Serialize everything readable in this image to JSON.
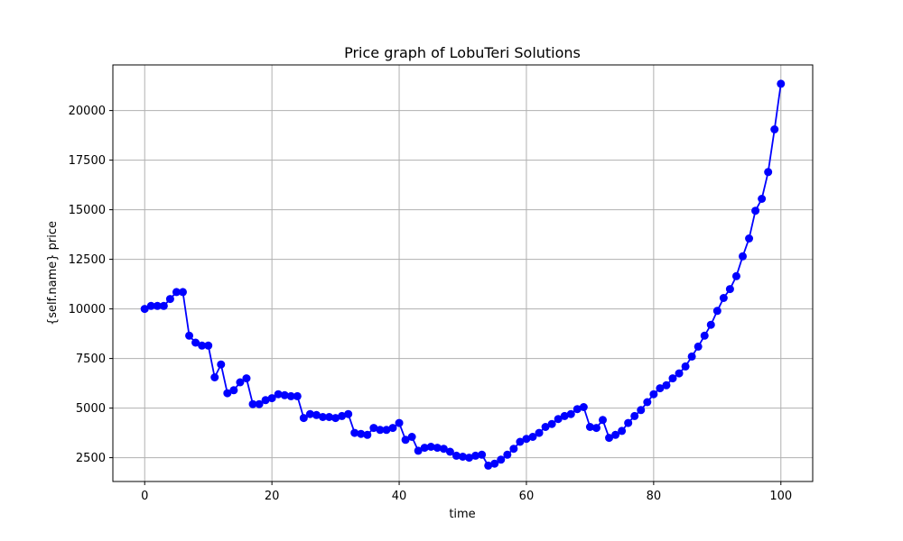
{
  "chart_data": {
    "type": "line",
    "title": "Price graph of LobuTeri Solutions",
    "xlabel": "time",
    "ylabel": "{self.name} price",
    "xlim": [
      -5,
      105
    ],
    "ylim": [
      1300,
      22300
    ],
    "xticks": [
      0,
      20,
      40,
      60,
      80,
      100
    ],
    "yticks": [
      2500,
      5000,
      7500,
      10000,
      12500,
      15000,
      17500,
      20000
    ],
    "grid": true,
    "series": [
      {
        "color": "#0000ff",
        "marker": "circle",
        "x": [
          0,
          1,
          2,
          3,
          4,
          5,
          6,
          7,
          8,
          9,
          10,
          11,
          12,
          13,
          14,
          15,
          16,
          17,
          18,
          19,
          20,
          21,
          22,
          23,
          24,
          25,
          26,
          27,
          28,
          29,
          30,
          31,
          32,
          33,
          34,
          35,
          36,
          37,
          38,
          39,
          40,
          41,
          42,
          43,
          44,
          45,
          46,
          47,
          48,
          49,
          50,
          51,
          52,
          53,
          54,
          55,
          56,
          57,
          58,
          59,
          60,
          61,
          62,
          63,
          64,
          65,
          66,
          67,
          68,
          69,
          70,
          71,
          72,
          73,
          74,
          75,
          76,
          77,
          78,
          79,
          80,
          81,
          82,
          83,
          84,
          85,
          86,
          87,
          88,
          89,
          90,
          91,
          92,
          93,
          94,
          95,
          96,
          97,
          98,
          99,
          100
        ],
        "y": [
          10000,
          10150,
          10150,
          10150,
          10500,
          10850,
          10850,
          8650,
          8300,
          8150,
          8150,
          6550,
          7200,
          5750,
          5900,
          6300,
          6500,
          5200,
          5200,
          5400,
          5500,
          5700,
          5650,
          5600,
          5600,
          4500,
          4700,
          4650,
          4550,
          4550,
          4500,
          4600,
          4700,
          3750,
          3700,
          3650,
          4000,
          3900,
          3900,
          4000,
          4250,
          3400,
          3550,
          2850,
          3000,
          3050,
          3000,
          2950,
          2800,
          2600,
          2550,
          2500,
          2600,
          2650,
          2100,
          2200,
          2400,
          2650,
          2950,
          3300,
          3450,
          3550,
          3750,
          4050,
          4200,
          4450,
          4600,
          4700,
          4950,
          5050,
          4050,
          4000,
          4400,
          3500,
          3650,
          3850,
          4250,
          4600,
          4900,
          5300,
          5700,
          6000,
          6150,
          6500,
          6750,
          7100,
          7600,
          8100,
          8650,
          9200,
          9900,
          10550,
          11000,
          11650,
          12650,
          13550,
          14950,
          15550,
          16900,
          19050,
          21350
        ]
      }
    ]
  }
}
